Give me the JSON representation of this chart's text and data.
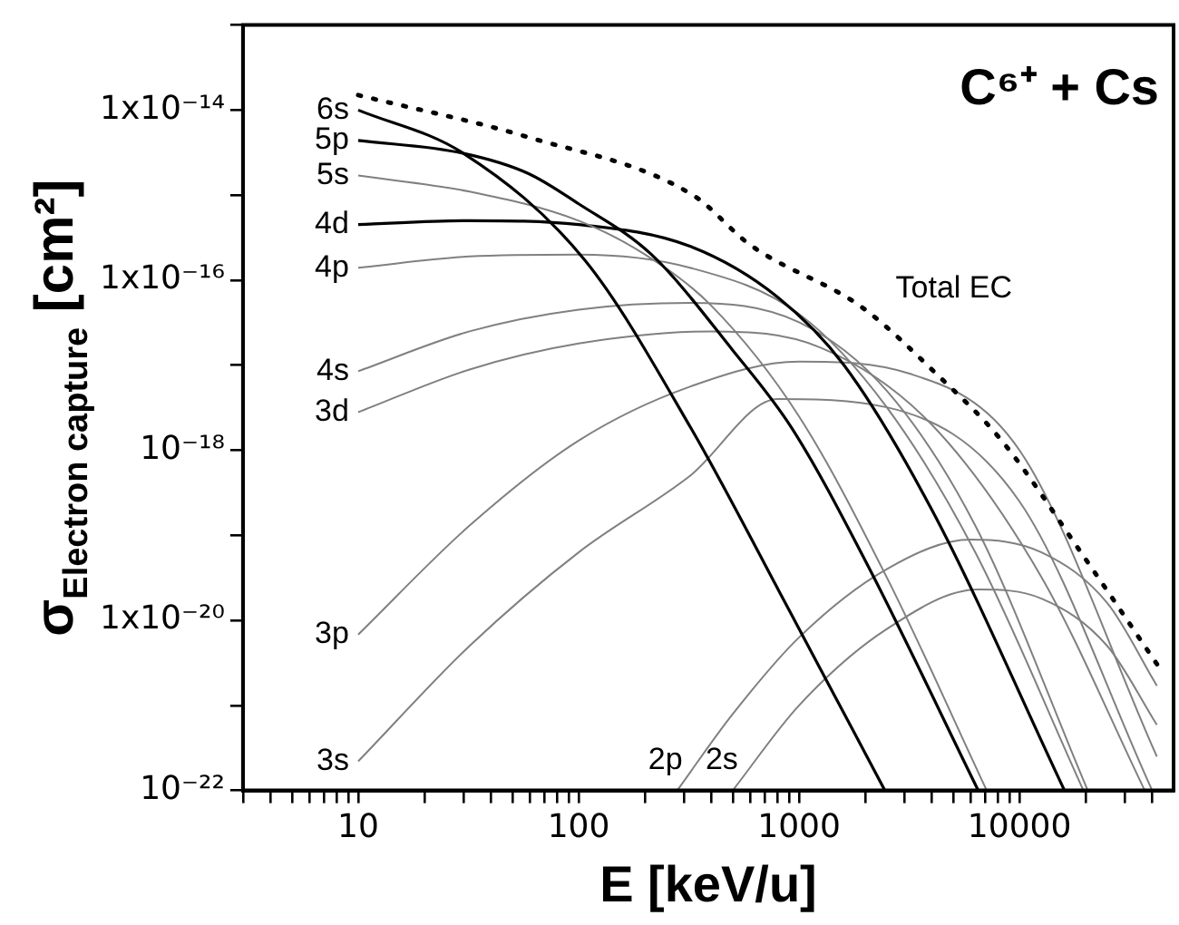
{
  "chart_data": {
    "type": "line",
    "title": "C⁶⁺ + Cs",
    "xlabel": "E [keV/u]",
    "ylabel": "σ$_{Electron capture}$ [cm²]",
    "log": "xy",
    "grid": false,
    "legend": false,
    "marker": "none",
    "xlim": [
      3,
      50000
    ],
    "ylim": [
      1e-22,
      1e-13
    ],
    "xticks": [
      {
        "value": 3,
        "label": null
      },
      {
        "value": 4,
        "label": null
      },
      {
        "value": 5,
        "label": null
      },
      {
        "value": 6,
        "label": null
      },
      {
        "value": 7,
        "label": null
      },
      {
        "value": 8,
        "label": null
      },
      {
        "value": 9,
        "label": null
      },
      10,
      {
        "value": 20,
        "label": null
      },
      {
        "value": 30,
        "label": null
      },
      {
        "value": 40,
        "label": null
      },
      {
        "value": 50,
        "label": null
      },
      {
        "value": 60,
        "label": null
      },
      {
        "value": 70,
        "label": null
      },
      {
        "value": 80,
        "label": null
      },
      {
        "value": 90,
        "label": null
      },
      100,
      {
        "value": 200,
        "label": null
      },
      {
        "value": 300,
        "label": null
      },
      {
        "value": 400,
        "label": null
      },
      {
        "value": 500,
        "label": null
      },
      {
        "value": 600,
        "label": null
      },
      {
        "value": 700,
        "label": null
      },
      {
        "value": 800,
        "label": null
      },
      {
        "value": 900,
        "label": null
      },
      1000,
      {
        "value": 2000,
        "label": null
      },
      {
        "value": 3000,
        "label": null
      },
      {
        "value": 4000,
        "label": null
      },
      {
        "value": 5000,
        "label": null
      },
      {
        "value": 6000,
        "label": null
      },
      {
        "value": 7000,
        "label": null
      },
      {
        "value": 8000,
        "label": null
      },
      {
        "value": 9000,
        "label": null
      },
      10000,
      {
        "value": 20000,
        "label": null
      },
      {
        "value": 30000,
        "label": null
      },
      {
        "value": 40000,
        "label": null
      }
    ],
    "yticks": [
      {
        "value": 1e-22,
        "label": "10⁻²²"
      },
      {
        "value": 1e-21,
        "label": null
      },
      {
        "value": 1e-20,
        "label": "1x10⁻²⁰"
      },
      {
        "value": 1e-19,
        "label": null
      },
      {
        "value": 1e-18,
        "label": "10⁻¹⁸"
      },
      {
        "value": 1e-17,
        "label": null
      },
      {
        "value": 1e-16,
        "label": "1x10⁻¹⁶"
      },
      {
        "value": 1e-15,
        "label": null
      },
      {
        "value": 1e-14,
        "label": "1x10⁻¹⁴"
      },
      {
        "value": 1e-13,
        "label": null
      }
    ],
    "series": [
      {
        "name": "Total EC",
        "color": "#000000",
        "line_style": "dotted",
        "x": [
          10,
          59,
          330,
          600,
          1950,
          4200,
          8300,
          19000,
          43000
        ],
        "values": [
          1.5e-14,
          4.8e-15,
          1e-15,
          2.6e-16,
          4.7e-17,
          7.9e-18,
          1.3e-18,
          6.3e-20,
          2.8e-21
        ]
      },
      {
        "name": "6s",
        "color": "#000000",
        "x": [
          10,
          30,
          107,
          324,
          890,
          2450
        ],
        "values": [
          1e-14,
          3.1e-15,
          1.7e-16,
          1.8e-18,
          1.4e-20,
          1e-22
        ]
      },
      {
        "name": "5p",
        "color": "#000000",
        "x": [
          10,
          30,
          59,
          100,
          214,
          500,
          930,
          2000,
          6500
        ],
        "values": [
          4.4e-15,
          3.1e-15,
          1.8e-15,
          7.9e-16,
          2e-16,
          1.5e-17,
          1.8e-18,
          5e-20,
          1e-22
        ]
      },
      {
        "name": "5s",
        "color": "#808080",
        "x": [
          10,
          32,
          100,
          200,
          400,
          1000,
          2500,
          7100
        ],
        "values": [
          1.7e-15,
          1.1e-15,
          5e-16,
          2e-16,
          5e-17,
          2.5e-18,
          3.2e-20,
          1e-22
        ]
      },
      {
        "name": "4d",
        "color": "#000000",
        "x": [
          10,
          32,
          100,
          320,
          800,
          1600,
          4000,
          16000
        ],
        "values": [
          4.5e-16,
          5e-16,
          4.5e-16,
          2.5e-16,
          6.3e-17,
          1e-17,
          2e-19,
          1e-22
        ]
      },
      {
        "name": "4p",
        "color": "#808080",
        "x": [
          10,
          32,
          100,
          320,
          1000,
          2500,
          6300,
          19500
        ],
        "values": [
          1.4e-16,
          1.9e-16,
          2e-16,
          1.4e-16,
          4e-17,
          3.2e-18,
          6.3e-20,
          1e-22
        ]
      },
      {
        "name": "4s",
        "color": "#808080",
        "x": [
          10,
          32,
          100,
          320,
          1000,
          2500,
          6300,
          20400
        ],
        "values": [
          8.5e-18,
          2.5e-17,
          4.5e-17,
          5.4e-17,
          3.2e-17,
          5e-18,
          1.3e-19,
          1e-22
        ]
      },
      {
        "name": "3d",
        "color": "#808080",
        "x": [
          10,
          32,
          100,
          400,
          1260,
          4000,
          12600,
          37000
        ],
        "values": [
          2.8e-18,
          8.9e-18,
          1.8e-17,
          2.5e-17,
          1.6e-17,
          2e-18,
          3.2e-20,
          1e-22
        ]
      },
      {
        "name": "3p",
        "color": "#808080",
        "x": [
          10,
          32,
          100,
          320,
          1000,
          3200,
          10000,
          42000
        ],
        "values": [
          6.8e-21,
          1.3e-19,
          1.3e-18,
          5.6e-18,
          1.1e-17,
          7.9e-18,
          1e-18,
          2.5e-22
        ]
      },
      {
        "name": "3s",
        "color": "#808080",
        "x": [
          10,
          32,
          100,
          320,
          800,
          2500,
          10000,
          40000
        ],
        "values": [
          2.2e-22,
          5e-21,
          6.3e-20,
          5e-19,
          4e-18,
          3.2e-18,
          2.5e-19,
          1e-22
        ]
      },
      {
        "name": "2p",
        "color": "#808080",
        "x": [
          280,
          500,
          1000,
          2500,
          6000,
          12600,
          25000,
          42000
        ],
        "values": [
          1e-22,
          7.9e-22,
          6.3e-21,
          4e-20,
          8.9e-20,
          6.3e-20,
          1.6e-20,
          1.7e-21
        ]
      },
      {
        "name": "2s",
        "color": "#808080",
        "x": [
          500,
          1000,
          2500,
          6500,
          12600,
          25000,
          42000
        ],
        "values": [
          1e-22,
          1e-21,
          7.9e-21,
          2.3e-20,
          1.8e-20,
          5e-21,
          5.9e-22
        ]
      }
    ]
  }
}
